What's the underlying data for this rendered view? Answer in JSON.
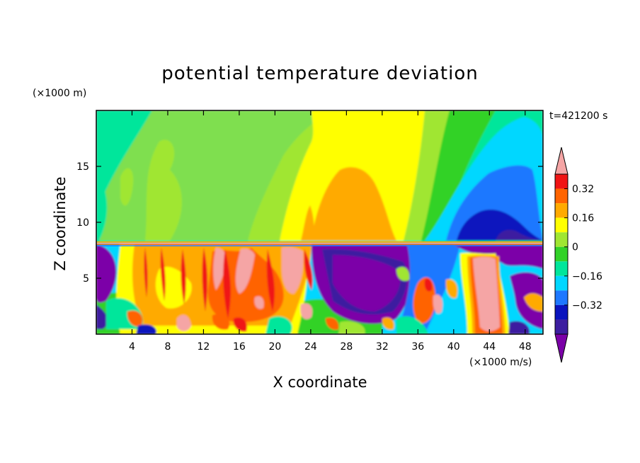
{
  "chart_data": {
    "type": "heatmap",
    "title": "potential temperature deviation",
    "xlabel": "X coordinate",
    "ylabel": "Z coordinate",
    "x_unit": "(×1000 m/s)",
    "y_unit": "(×1000 m)",
    "time_label": "t=421200 s",
    "xlim": [
      0,
      50
    ],
    "ylim": [
      0,
      20
    ],
    "x_ticks": [
      4,
      8,
      12,
      16,
      20,
      24,
      28,
      32,
      36,
      40,
      44,
      48
    ],
    "y_ticks": [
      5,
      10,
      15
    ],
    "colorbar": {
      "levels": [
        -0.48,
        -0.4,
        -0.32,
        -0.24,
        -0.16,
        -0.08,
        0,
        0.08,
        0.16,
        0.24,
        0.32,
        0.4
      ],
      "labeled_levels": [
        "0.32",
        "0.16",
        "0",
        "−0.16",
        "−0.32"
      ],
      "labeled_values": [
        0.32,
        0.16,
        0,
        -0.16,
        -0.32
      ],
      "colors": [
        "#7B00A8",
        "#3C1EA0",
        "#0A14BE",
        "#1E78FF",
        "#00D7FF",
        "#00E69B",
        "#32D228",
        "#A0E632",
        "#FFFF00",
        "#FFAA00",
        "#FF6400",
        "#F01414",
        "#F5A5A5"
      ],
      "extend": "both"
    },
    "field_regions": [
      {
        "name": "upper-left-mint",
        "level": -0.06
      },
      {
        "name": "upper-mid-yellow",
        "level": 0.18
      },
      {
        "name": "upper-orange-plume",
        "level": 0.22
      },
      {
        "name": "upper-right-blue",
        "level": -0.3
      },
      {
        "name": "lower-left-turbulent-red",
        "level": 0.35
      },
      {
        "name": "lower-mid-purple",
        "level": -0.45
      },
      {
        "name": "lower-right-pink-plume",
        "level": 0.42
      }
    ]
  }
}
